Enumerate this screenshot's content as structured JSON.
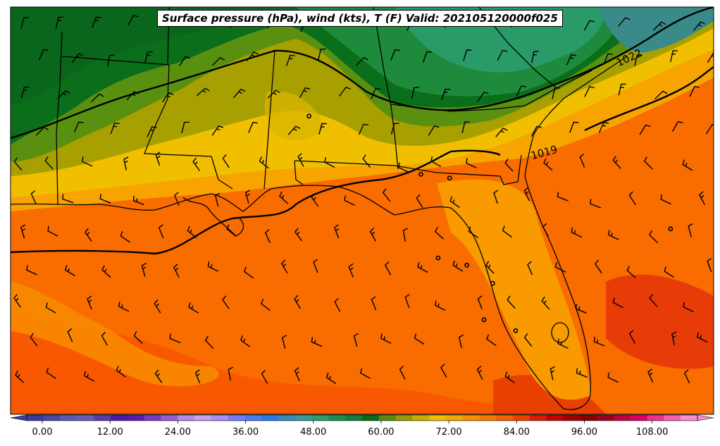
{
  "title": "Surface pressure (hPa), wind (kts), T (F) Valid: 202105120000f025",
  "isobar_labels": [
    "1022",
    "1019"
  ],
  "colorbar": {
    "tick_labels": [
      "0.00",
      "12.00",
      "24.00",
      "36.00",
      "48.00",
      "60.00",
      "72.00",
      "84.00",
      "96.00",
      "108.00"
    ],
    "colors": [
      "#3a3aa0",
      "#4848a8",
      "#5a5ab0",
      "#6a5ab8",
      "#5a3ab0",
      "#4a1aa8",
      "#5a1ab8",
      "#7a3ac8",
      "#9a5ad8",
      "#b88ae8",
      "#c8a0f0",
      "#a890f8",
      "#7a7af8",
      "#4a7af8",
      "#2a7ae8",
      "#3a8ab8",
      "#3a9a9a",
      "#2aa070",
      "#1a9050",
      "#128040",
      "#0a6a1a",
      "#5a8a10",
      "#9a9a08",
      "#c8b000",
      "#f0c000",
      "#f8a800",
      "#f89000",
      "#f87800",
      "#f86000",
      "#f04000",
      "#e01808",
      "#c80000",
      "#a00000",
      "#880000",
      "#a00020",
      "#c00040",
      "#e00060",
      "#f03090",
      "#f860b0",
      "#f890d0"
    ]
  },
  "point_markers": [
    {
      "lon": -88.1,
      "lat": 32.2
    },
    {
      "lon": -84.2,
      "lat": 30.6
    },
    {
      "lon": -83.2,
      "lat": 30.5
    },
    {
      "lon": -83.6,
      "lat": 28.3
    },
    {
      "lon": -82.6,
      "lat": 28.1
    },
    {
      "lon": -81.7,
      "lat": 27.6
    },
    {
      "lon": -82.0,
      "lat": 26.6
    },
    {
      "lon": -80.9,
      "lat": 26.3
    },
    {
      "lon": -75.5,
      "lat": 29.1
    }
  ]
}
